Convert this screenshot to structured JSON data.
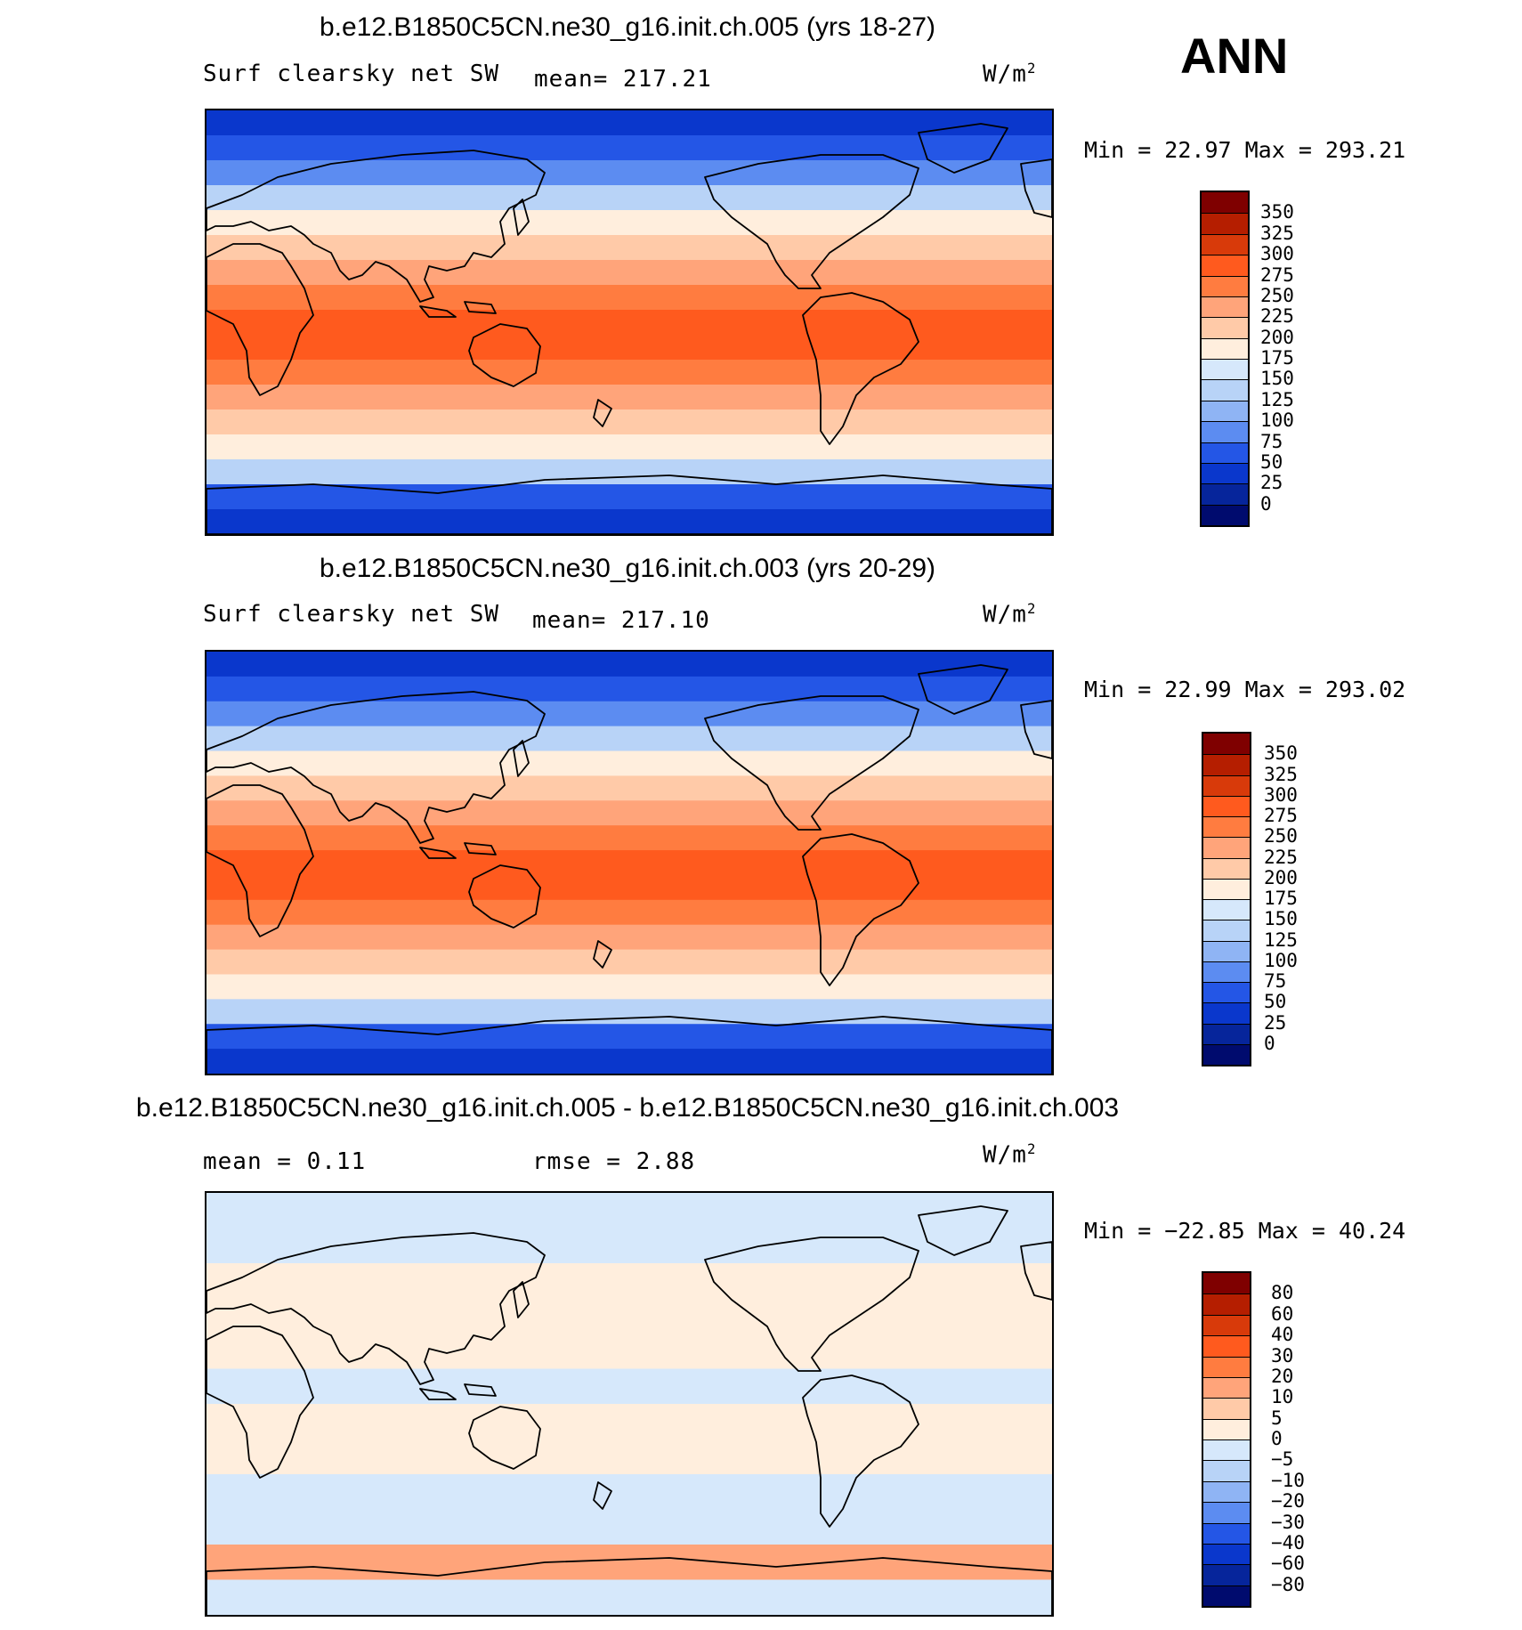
{
  "season": "ANN",
  "panels": [
    {
      "title": "b.e12.B1850C5CN.ne30_g16.init.ch.005 (yrs 18-27)",
      "left": "Surf clearsky net SW",
      "center": "mean= 217.21",
      "units": "W/m",
      "units_sup": "2",
      "minmax": "Min =   22.97 Max = 293.21",
      "levels": [
        "350",
        "325",
        "300",
        "275",
        "250",
        "225",
        "200",
        "175",
        "150",
        "125",
        "100",
        "75",
        "50",
        "25",
        "0"
      ],
      "colors": [
        "#7f0000",
        "#b51e00",
        "#d83a0a",
        "#ff5a1e",
        "#ff7c40",
        "#ffa47a",
        "#ffcaa8",
        "#ffeedd",
        "#d6e8fb",
        "#b8d3f7",
        "#8fb4f4",
        "#5c8cf1",
        "#2456e6",
        "#0a37cc",
        "#06259b",
        "#000b6e"
      ]
    },
    {
      "title": "b.e12.B1850C5CN.ne30_g16.init.ch.003 (yrs 20-29)",
      "left": "Surf clearsky net SW",
      "center": "mean= 217.10",
      "units": "W/m",
      "units_sup": "2",
      "minmax": "Min =   22.99 Max = 293.02",
      "levels": [
        "350",
        "325",
        "300",
        "275",
        "250",
        "225",
        "200",
        "175",
        "150",
        "125",
        "100",
        "75",
        "50",
        "25",
        "0"
      ],
      "colors": [
        "#7f0000",
        "#b51e00",
        "#d83a0a",
        "#ff5a1e",
        "#ff7c40",
        "#ffa47a",
        "#ffcaa8",
        "#ffeedd",
        "#d6e8fb",
        "#b8d3f7",
        "#8fb4f4",
        "#5c8cf1",
        "#2456e6",
        "#0a37cc",
        "#06259b",
        "#000b6e"
      ]
    },
    {
      "title": "b.e12.B1850C5CN.ne30_g16.init.ch.005 - b.e12.B1850C5CN.ne30_g16.init.ch.003",
      "left": "mean =    0.11",
      "center": "rmse =    2.88",
      "units": "W/m",
      "units_sup": "2",
      "minmax": "Min = −22.85 Max =   40.24",
      "levels": [
        "80",
        "60",
        "40",
        "30",
        "20",
        "10",
        "5",
        "0",
        "−5",
        "−10",
        "−20",
        "−30",
        "−40",
        "−60",
        "−80"
      ],
      "colors": [
        "#7f0000",
        "#b51e00",
        "#d83a0a",
        "#ff5a1e",
        "#ff7c40",
        "#ffa47a",
        "#ffcaa8",
        "#ffeedd",
        "#d6e8fb",
        "#b8d3f7",
        "#8fb4f4",
        "#5c8cf1",
        "#2456e6",
        "#0a37cc",
        "#06259b",
        "#000b6e"
      ]
    }
  ],
  "field_bands": [
    {
      "levels_from_top": [
        "#0a37cc",
        "#2456e6",
        "#5c8cf1",
        "#b8d3f7",
        "#ffeedd",
        "#ffcaa8",
        "#ffa47a",
        "#ff7c40",
        "#ff5a1e",
        "#ff5a1e",
        "#ff7c40",
        "#ffa47a",
        "#ffcaa8",
        "#ffeedd",
        "#b8d3f7",
        "#2456e6",
        "#0a37cc"
      ]
    },
    {
      "levels_from_top": [
        "#0a37cc",
        "#2456e6",
        "#5c8cf1",
        "#b8d3f7",
        "#ffeedd",
        "#ffcaa8",
        "#ffa47a",
        "#ff7c40",
        "#ff5a1e",
        "#ff5a1e",
        "#ff7c40",
        "#ffa47a",
        "#ffcaa8",
        "#ffeedd",
        "#b8d3f7",
        "#2456e6",
        "#0a37cc"
      ]
    },
    {
      "levels_from_top": [
        "#d6e8fb",
        "#d6e8fb",
        "#ffeedd",
        "#ffeedd",
        "#ffeedd",
        "#d6e8fb",
        "#ffeedd",
        "#ffeedd",
        "#d6e8fb",
        "#d6e8fb",
        "#ffa47a",
        "#d6e8fb"
      ]
    }
  ]
}
